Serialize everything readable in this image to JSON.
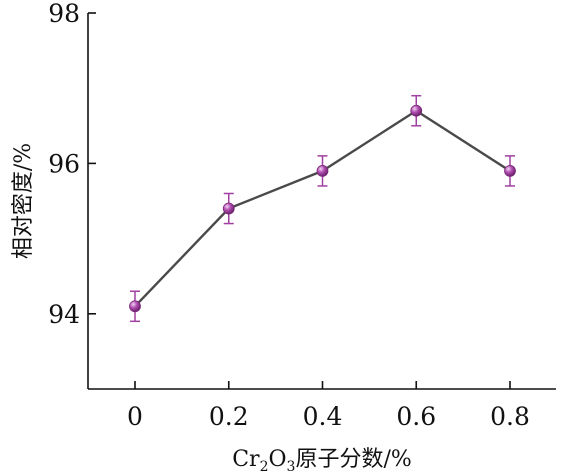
{
  "chart_data": {
    "type": "line",
    "title": "",
    "xlabel": "Cr2O3原子分数/%",
    "xlabel_parts": {
      "pre": "Cr",
      "sub1": "2",
      "mid": "O",
      "sub2": "3",
      "post": "原子分数/%"
    },
    "ylabel": "相对密度/%",
    "x": [
      0,
      0.2,
      0.4,
      0.6,
      0.8
    ],
    "x_tick_labels": [
      "0",
      "0.2",
      "0.4",
      "0.6",
      "0.8"
    ],
    "y": [
      94.1,
      95.4,
      95.9,
      96.7,
      95.9
    ],
    "y_error": [
      0.2,
      0.2,
      0.2,
      0.2,
      0.2
    ],
    "y_ticks": [
      94,
      96,
      98
    ],
    "y_tick_labels": [
      "94",
      "96",
      "98"
    ],
    "xlim": [
      -0.1,
      0.9
    ],
    "ylim": [
      93,
      98
    ],
    "grid": false,
    "line_color": "#4a4a4a",
    "marker_color": "#a040a0"
  }
}
